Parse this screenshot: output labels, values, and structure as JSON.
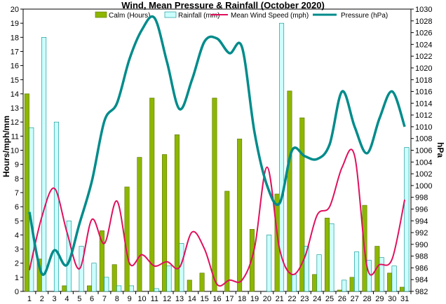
{
  "chart_data": {
    "type": "bar+line",
    "title": "Wind, Mean Pressure & Rainfall (October 2020)",
    "categories": [
      "1",
      "2",
      "3",
      "4",
      "5",
      "6",
      "7",
      "8",
      "9",
      "10",
      "11",
      "12",
      "13",
      "14",
      "15",
      "16",
      "17",
      "18",
      "19",
      "20",
      "21",
      "22",
      "23",
      "24",
      "25",
      "26",
      "27",
      "28",
      "29",
      "30",
      "31"
    ],
    "ylabel": "Hours/mph/mm",
    "y2label": "hPa",
    "ylim": [
      0,
      20
    ],
    "y2lim": [
      982,
      1030
    ],
    "yticks": [
      "0",
      "1",
      "2",
      "3",
      "4",
      "5",
      "6",
      "7",
      "8",
      "9",
      "10",
      "11",
      "12",
      "13",
      "14",
      "15",
      "16",
      "17",
      "18",
      "19",
      "20"
    ],
    "y2ticks": [
      "982",
      "984",
      "986",
      "988",
      "990",
      "992",
      "994",
      "996",
      "998",
      "1000",
      "1002",
      "1004",
      "1006",
      "1008",
      "1010",
      "1012",
      "1014",
      "1016",
      "1018",
      "1020",
      "1022",
      "1024",
      "1026",
      "1028",
      "1030"
    ],
    "grid": false,
    "legend_position": "top",
    "series": [
      {
        "name": "Calm (Hours)",
        "type": "bar",
        "axis": "left",
        "color": "#8db600",
        "values": [
          14,
          2.3,
          0,
          0.4,
          0,
          0.4,
          4.3,
          1.9,
          7.4,
          9.5,
          13.7,
          9.7,
          11.1,
          0.8,
          1.3,
          13.7,
          7.1,
          10.8,
          4.4,
          0,
          6.9,
          14.2,
          12.3,
          1.2,
          5.2,
          0.1,
          1.0,
          6.1,
          3.2,
          1.3,
          0.3
        ]
      },
      {
        "name": "Rainfall (mm)",
        "type": "bar",
        "axis": "left",
        "color": "#ccffff",
        "values": [
          11.6,
          18,
          12,
          5,
          3.2,
          2,
          1,
          0.4,
          0.4,
          0,
          0.2,
          1.8,
          3.4,
          0,
          0,
          0,
          0,
          0,
          0,
          4,
          19,
          1.2,
          3.2,
          2.6,
          4.8,
          0.8,
          2.8,
          2.2,
          2.4,
          1.8,
          10.2
        ]
      },
      {
        "name": "Mean Wind Speed (mph)",
        "type": "line",
        "axis": "left",
        "color": "#e0105e",
        "values": [
          1.5,
          5.3,
          7.3,
          4.2,
          1.6,
          5.1,
          3.4,
          6.4,
          2.0,
          2.6,
          1.8,
          2.1,
          1.7,
          4.2,
          3.0,
          0.5,
          0.8,
          0.8,
          3.1,
          8.8,
          3.0,
          1.2,
          2.4,
          5.4,
          6.0,
          8.8,
          9.6,
          1.7,
          1.9,
          2.3,
          6.5
        ]
      },
      {
        "name": "Pressure (hPa)",
        "type": "line",
        "axis": "right",
        "color": "#008b8b",
        "values": [
          995.5,
          985,
          989,
          986.5,
          993.5,
          1000.8,
          1011,
          1014,
          1021.5,
          1026.5,
          1028.5,
          1021,
          1013,
          1018,
          1024.5,
          1025,
          1022.5,
          1023.5,
          1009,
          1000,
          997,
          1006,
          1005,
          1004.5,
          1007,
          1016,
          1010,
          1005.5,
          1011.5,
          1016,
          1010
        ]
      }
    ]
  }
}
